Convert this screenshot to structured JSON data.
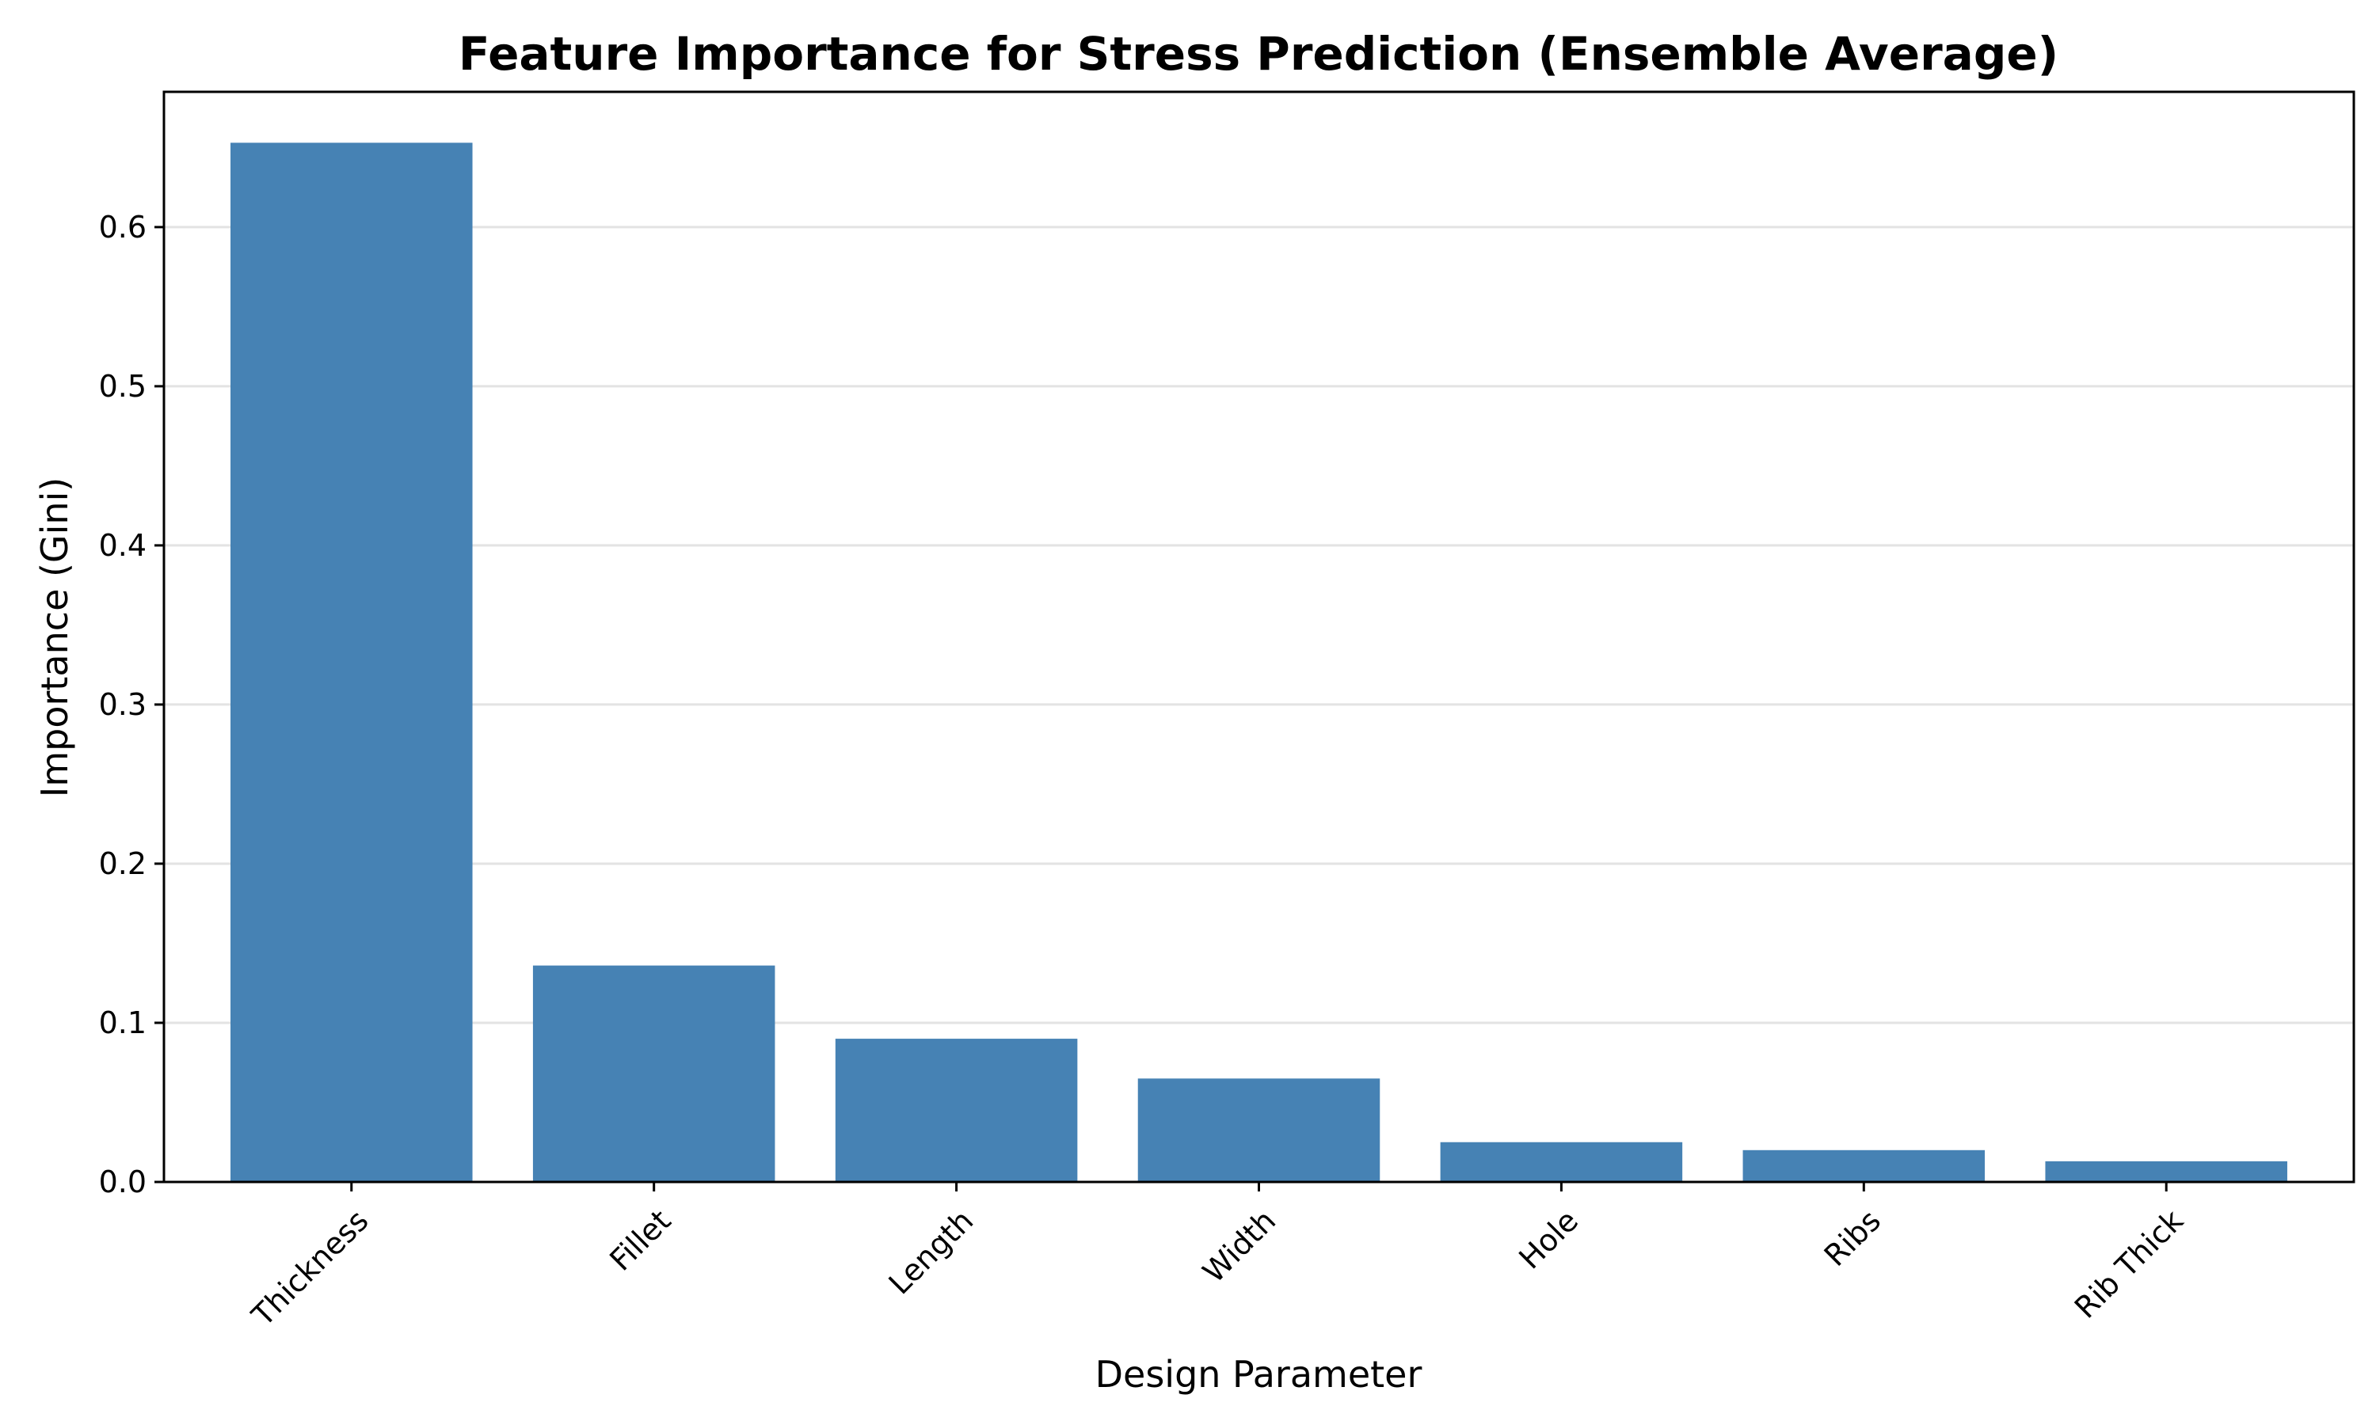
{
  "chart_data": {
    "type": "bar",
    "title": "Feature Importance for Stress Prediction (Ensemble Average)",
    "xlabel": "Design Parameter",
    "ylabel": "Importance (Gini)",
    "categories": [
      "Thickness",
      "Fillet",
      "Length",
      "Width",
      "Hole",
      "Ribs",
      "Rib Thick"
    ],
    "values": [
      0.653,
      0.136,
      0.09,
      0.065,
      0.025,
      0.02,
      0.013
    ],
    "ylim": [
      0,
      0.685
    ],
    "yticks": [
      0.0,
      0.1,
      0.2,
      0.3,
      0.4,
      0.5,
      0.6
    ],
    "ytick_labels": [
      "0.0",
      "0.1",
      "0.2",
      "0.3",
      "0.4",
      "0.5",
      "0.6"
    ],
    "grid": "y-major",
    "legend": "none",
    "bar_color": "#4682b4",
    "grid_color": "#e3e3e3"
  }
}
